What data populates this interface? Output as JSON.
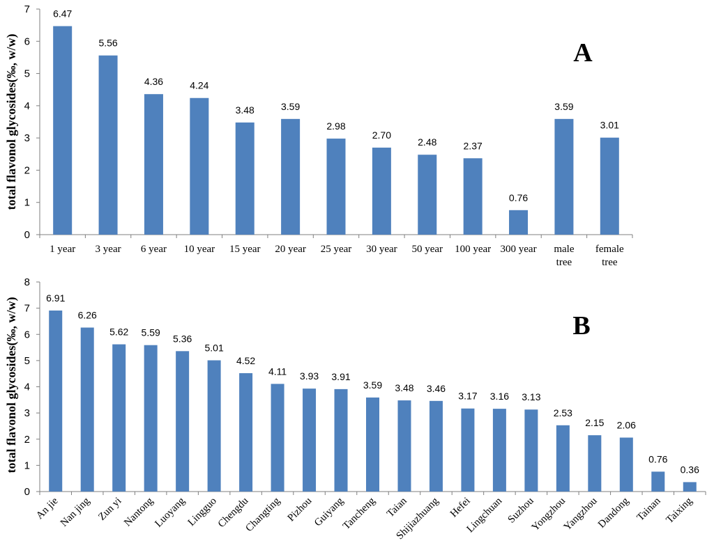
{
  "chart_data": [
    {
      "type": "bar",
      "title": "",
      "panel_letter": "A",
      "ylabel": "total flavonol glycosides(‰, w/w)",
      "xlabel": "",
      "ylim": [
        0,
        7
      ],
      "y_ticks": [
        "0",
        "1",
        "2",
        "3",
        "4",
        "5",
        "6",
        "7"
      ],
      "grid": false,
      "legend": "none",
      "bar_color": "#4f81bd",
      "categories": [
        [
          "1 year"
        ],
        [
          "3 year"
        ],
        [
          "6 year"
        ],
        [
          "10 year"
        ],
        [
          "15 year"
        ],
        [
          "20 year"
        ],
        [
          "25 year"
        ],
        [
          "30 year"
        ],
        [
          "50 year"
        ],
        [
          "100 year"
        ],
        [
          "300 year"
        ],
        [
          "male",
          "tree"
        ],
        [
          "female",
          "tree"
        ]
      ],
      "values": [
        6.47,
        5.56,
        4.36,
        4.24,
        3.48,
        3.59,
        2.98,
        2.7,
        2.48,
        2.37,
        0.76,
        3.59,
        3.01
      ],
      "data_labels": [
        "6.47",
        "5.56",
        "4.36",
        "4.24",
        "3.48",
        "3.59",
        "2.98",
        "2.70",
        "2.48",
        "2.37",
        "0.76",
        "3.59",
        "3.01"
      ]
    },
    {
      "type": "bar",
      "title": "",
      "panel_letter": "B",
      "ylabel": "total flavonol glycosides(‰, w/w)",
      "xlabel": "",
      "ylim": [
        0,
        8
      ],
      "y_ticks": [
        "0",
        "1",
        "2",
        "3",
        "4",
        "5",
        "6",
        "7",
        "8"
      ],
      "grid": false,
      "legend": "none",
      "bar_color": "#4f81bd",
      "categories": [
        "An jie",
        "Nan jing",
        "Zun yi",
        "Nantong",
        "Luoyang",
        "Lingguo",
        "Chengdu",
        "Changting",
        "Pizhou",
        "Guiyang",
        "Tancheng",
        "Taian",
        "Shijiazhuang",
        "Hefei",
        "Lingchuan",
        "Suzhou",
        "Yongzhou",
        "Yangzhou",
        "Dandong",
        "Tainan",
        "Taixing"
      ],
      "values": [
        6.91,
        6.26,
        5.62,
        5.59,
        5.36,
        5.01,
        4.52,
        4.11,
        3.93,
        3.91,
        3.59,
        3.48,
        3.46,
        3.17,
        3.16,
        3.13,
        2.53,
        2.15,
        2.06,
        0.76,
        0.36
      ],
      "data_labels": [
        "6.91",
        "6.26",
        "5.62",
        "5.59",
        "5.36",
        "5.01",
        "4.52",
        "4.11",
        "3.93",
        "3.91",
        "3.59",
        "3.48",
        "3.46",
        "3.17",
        "3.16",
        "3.13",
        "2.53",
        "2.15",
        "2.06",
        "0.76",
        "0.36"
      ]
    }
  ]
}
